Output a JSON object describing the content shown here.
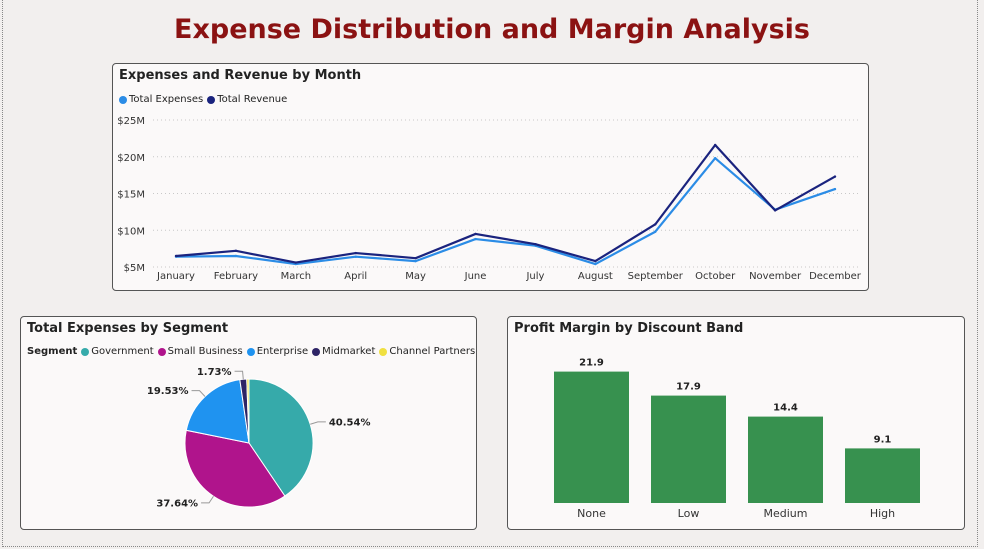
{
  "dashboard": {
    "title": "Expense Distribution and Margin Analysis"
  },
  "colors": {
    "title": "#8b1212",
    "total_expenses": "#2b8ce6",
    "total_revenue": "#1a237e",
    "government": "#36aaaa",
    "small_business": "#b0148c",
    "enterprise": "#1f93f0",
    "midmarket": "#2e2466",
    "channel_partners": "#f0e040",
    "bar": "#37914f"
  },
  "chart_data": [
    {
      "type": "line",
      "title": "Expenses and Revenue by Month",
      "x": [
        "January",
        "February",
        "March",
        "April",
        "May",
        "June",
        "July",
        "August",
        "September",
        "October",
        "November",
        "December"
      ],
      "series": [
        {
          "name": "Total Expenses",
          "color": "#2b8ce6",
          "values": [
            6.4,
            6.5,
            5.4,
            6.4,
            5.8,
            8.8,
            7.9,
            5.4,
            9.8,
            19.8,
            12.8,
            15.6
          ]
        },
        {
          "name": "Total Revenue",
          "color": "#1a237e",
          "values": [
            6.5,
            7.2,
            5.6,
            6.9,
            6.2,
            9.5,
            8.1,
            5.8,
            10.8,
            21.6,
            12.7,
            17.3
          ]
        }
      ],
      "y_ticks": [
        "$5M",
        "$10M",
        "$15M",
        "$20M",
        "$25M"
      ],
      "ylim": [
        5,
        25
      ],
      "grid": true,
      "legend": "top-left"
    },
    {
      "type": "pie",
      "title": "Total Expenses by Segment",
      "legend_title": "Segment",
      "slices": [
        {
          "name": "Government",
          "value": 40.54,
          "label": "40.54%",
          "color": "#36aaaa"
        },
        {
          "name": "Small Business",
          "value": 37.64,
          "label": "37.64%",
          "color": "#b0148c"
        },
        {
          "name": "Enterprise",
          "value": 19.53,
          "label": "19.53%",
          "color": "#1f93f0"
        },
        {
          "name": "Midmarket",
          "value": 1.73,
          "label": "1.73%",
          "color": "#2e2466"
        },
        {
          "name": "Channel Partners",
          "value": 0.56,
          "label": "",
          "color": "#f0e040"
        }
      ],
      "legend": "top-left"
    },
    {
      "type": "bar",
      "title": "Profit Margin by Discount Band",
      "categories": [
        "None",
        "Low",
        "Medium",
        "High"
      ],
      "values": [
        21.9,
        17.9,
        14.4,
        9.1
      ],
      "value_labels": [
        "21.9",
        "17.9",
        "14.4",
        "9.1"
      ],
      "ylim": [
        0,
        25
      ]
    }
  ]
}
